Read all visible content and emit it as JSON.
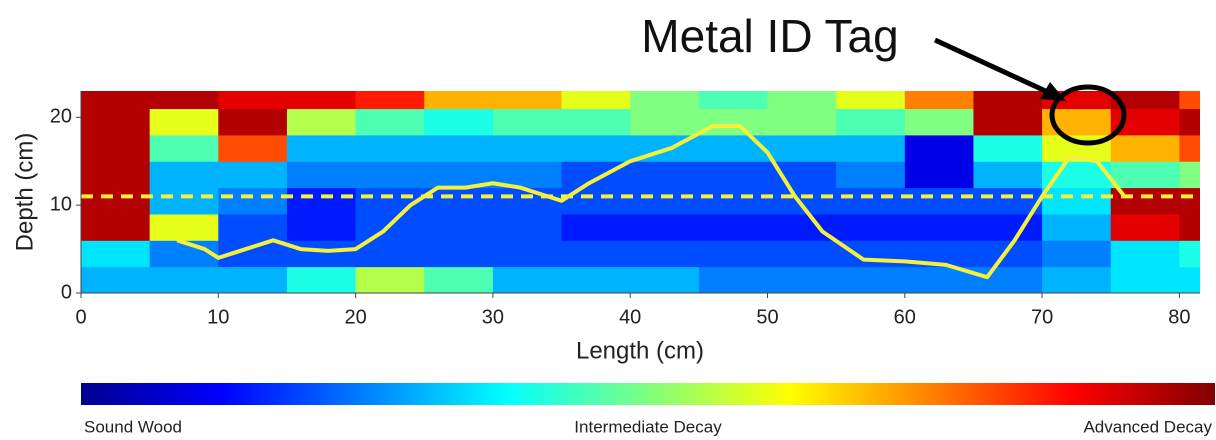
{
  "chart_data": {
    "type": "heatmap",
    "xlabel": "Length (cm)",
    "ylabel": "Depth (cm)",
    "xlim": [
      0,
      81.5
    ],
    "ylim": [
      0,
      23
    ],
    "xticks": [
      0,
      10,
      20,
      30,
      40,
      50,
      60,
      70,
      80
    ],
    "yticks": [
      0,
      10,
      20
    ],
    "x_edges": [
      0,
      5,
      10,
      15,
      20,
      25,
      30,
      35,
      40,
      45,
      50,
      55,
      60,
      65,
      70,
      75,
      80,
      81.5
    ],
    "y_edges": [
      0,
      3,
      6,
      9,
      12,
      15,
      18,
      21,
      23
    ],
    "z": [
      [
        0.3,
        0.3,
        0.3,
        0.4,
        0.55,
        0.45,
        0.3,
        0.3,
        0.3,
        0.25,
        0.25,
        0.25,
        0.25,
        0.25,
        0.3,
        0.35,
        0.35
      ],
      [
        0.35,
        0.25,
        0.2,
        0.2,
        0.2,
        0.2,
        0.2,
        0.2,
        0.2,
        0.2,
        0.2,
        0.2,
        0.2,
        0.2,
        0.25,
        0.35,
        0.4
      ],
      [
        0.95,
        0.6,
        0.2,
        0.15,
        0.2,
        0.2,
        0.2,
        0.15,
        0.15,
        0.15,
        0.15,
        0.15,
        0.15,
        0.15,
        0.3,
        0.9,
        0.95
      ],
      [
        0.95,
        0.3,
        0.25,
        0.15,
        0.2,
        0.2,
        0.2,
        0.2,
        0.2,
        0.2,
        0.2,
        0.2,
        0.2,
        0.2,
        0.35,
        0.95,
        0.95
      ],
      [
        0.95,
        0.3,
        0.3,
        0.25,
        0.25,
        0.25,
        0.25,
        0.2,
        0.2,
        0.2,
        0.2,
        0.25,
        0.1,
        0.3,
        0.4,
        0.45,
        0.5
      ],
      [
        0.95,
        0.45,
        0.8,
        0.3,
        0.3,
        0.3,
        0.3,
        0.3,
        0.3,
        0.3,
        0.3,
        0.3,
        0.1,
        0.4,
        0.6,
        0.7,
        0.8
      ],
      [
        0.95,
        0.6,
        0.95,
        0.55,
        0.45,
        0.4,
        0.45,
        0.45,
        0.5,
        0.5,
        0.5,
        0.45,
        0.5,
        0.95,
        0.7,
        0.9,
        0.95
      ],
      [
        0.95,
        0.95,
        0.9,
        0.9,
        0.85,
        0.7,
        0.7,
        0.6,
        0.5,
        0.45,
        0.5,
        0.6,
        0.75,
        0.95,
        0.9,
        0.95,
        0.8
      ]
    ],
    "zlim": [
      0,
      1
    ],
    "colorbar_labels": [
      "Sound Wood",
      "Intermediate Decay",
      "Advanced Decay"
    ],
    "line": {
      "color": "#f5f03a",
      "x": [
        7,
        9,
        10,
        12,
        14,
        16,
        18,
        20,
        22,
        24,
        26,
        28,
        30,
        32,
        34,
        35,
        37,
        40,
        43,
        46,
        48,
        50,
        52,
        54,
        57,
        60,
        63,
        66,
        68,
        70,
        72,
        74,
        76
      ],
      "y": [
        6,
        5,
        4,
        5,
        6,
        5,
        4.8,
        5,
        7,
        10,
        12,
        12,
        12.5,
        12,
        11,
        10.5,
        12.5,
        15,
        16.5,
        19,
        19,
        16,
        11,
        7,
        3.8,
        3.6,
        3.2,
        1.8,
        6,
        11,
        15.5,
        15,
        11
      ]
    },
    "threshold": {
      "y": 11,
      "color": "#f5f03a"
    },
    "annotation": "Metal ID Tag"
  }
}
